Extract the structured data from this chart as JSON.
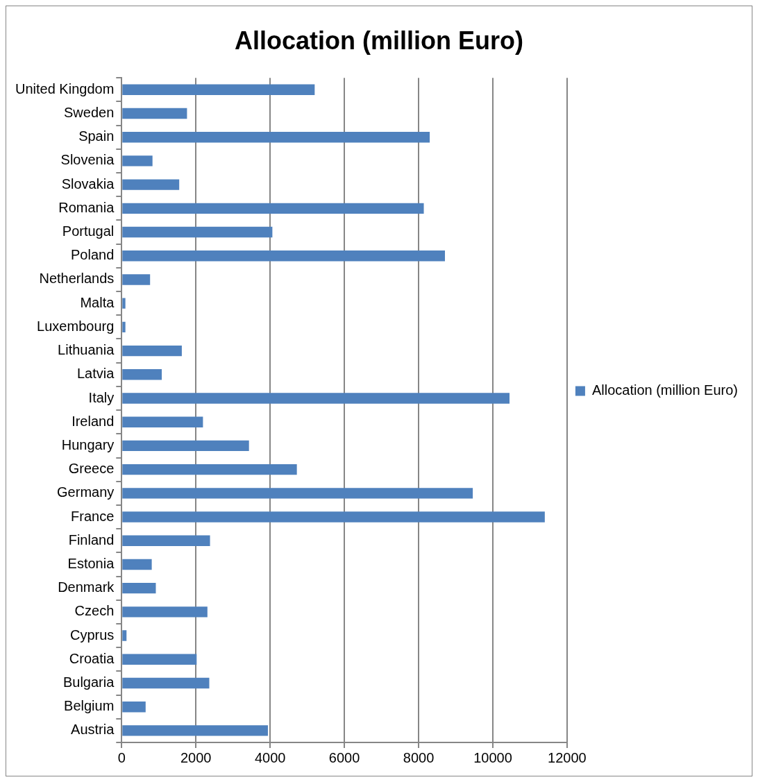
{
  "chart_data": {
    "type": "bar",
    "orientation": "horizontal",
    "title": "Allocation (million Euro)",
    "categories": [
      "United Kingdom",
      "Sweden",
      "Spain",
      "Slovenia",
      "Slovakia",
      "Romania",
      "Portugal",
      "Poland",
      "Netherlands",
      "Malta",
      "Luxembourg",
      "Lithuania",
      "Latvia",
      "Italy",
      "Ireland",
      "Hungary",
      "Greece",
      "Germany",
      "France",
      "Finland",
      "Estonia",
      "Denmark",
      "Czech",
      "Cyprus",
      "Croatia",
      "Bulgaria",
      "Belgium",
      "Austria"
    ],
    "series": [
      {
        "name": "Allocation (million Euro)",
        "color": "#4f81bd",
        "values": [
          5200,
          1760,
          8300,
          830,
          1550,
          8140,
          4060,
          8710,
          765,
          100,
          100,
          1620,
          1080,
          10450,
          2190,
          3430,
          4720,
          9460,
          11400,
          2380,
          810,
          920,
          2310,
          130,
          2020,
          2360,
          645,
          3940
        ]
      }
    ],
    "xlim": [
      0,
      12000
    ],
    "xticks": [
      0,
      2000,
      4000,
      6000,
      8000,
      10000,
      12000
    ],
    "grid": "x",
    "legend": "right"
  }
}
